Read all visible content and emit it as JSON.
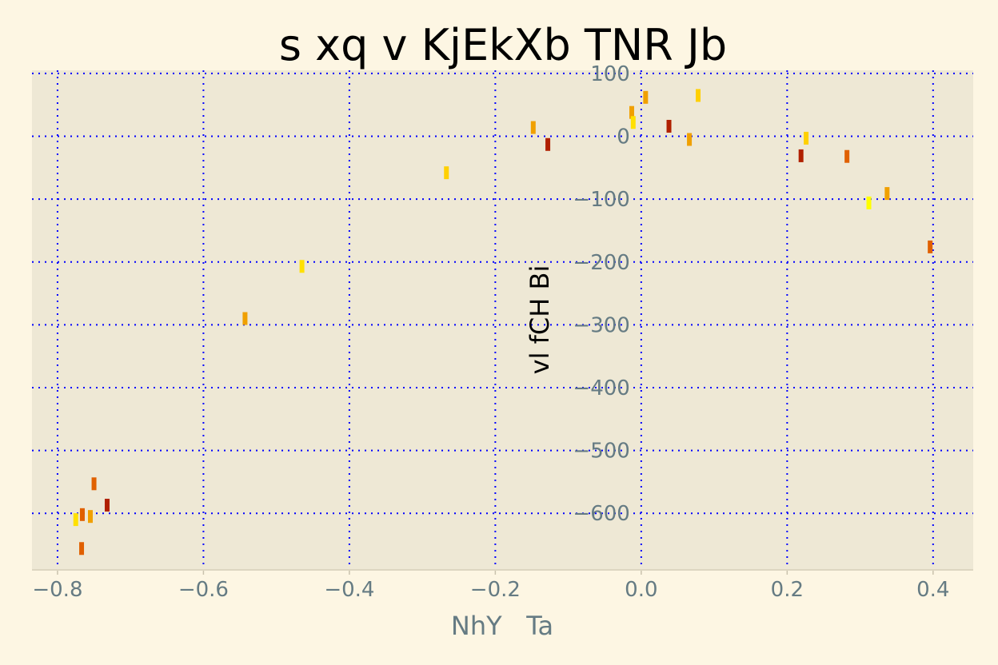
{
  "chart_data": {
    "type": "scatter",
    "title": "s xq v KjEkXb TNR Jb",
    "xlabel": "NhY   Ta",
    "ylabel": "vl fCH Bi",
    "xlim": [
      -0.835,
      0.455
    ],
    "ylim": [
      -690,
      105
    ],
    "xticks": [
      -0.8,
      -0.6,
      -0.4,
      -0.2,
      0.0,
      0.2,
      0.4
    ],
    "xtick_labels": [
      "−0.8",
      "−0.6",
      "−0.4",
      "−0.2",
      "0.0",
      "0.2",
      "0.4"
    ],
    "yticks": [
      100,
      0,
      -100,
      -200,
      -300,
      -400,
      -500,
      -600
    ],
    "ytick_labels": [
      "100",
      "0",
      "−100",
      "−200",
      "−300",
      "−400",
      "−500",
      "−600"
    ],
    "grid": true,
    "marker": "vertical-line",
    "points": [
      {
        "x": -0.775,
        "y": -610,
        "color": "#ffe000"
      },
      {
        "x": -0.766,
        "y": -602,
        "color": "#e06000"
      },
      {
        "x": -0.767,
        "y": -656,
        "color": "#e06000"
      },
      {
        "x": -0.755,
        "y": -605,
        "color": "#f0a000"
      },
      {
        "x": -0.75,
        "y": -553,
        "color": "#e06000"
      },
      {
        "x": -0.732,
        "y": -587,
        "color": "#b02000"
      },
      {
        "x": -0.543,
        "y": -290,
        "color": "#f0a000"
      },
      {
        "x": -0.465,
        "y": -207,
        "color": "#ffe000"
      },
      {
        "x": -0.267,
        "y": -58,
        "color": "#ffd000"
      },
      {
        "x": -0.148,
        "y": 14,
        "color": "#f0a000"
      },
      {
        "x": -0.128,
        "y": -13,
        "color": "#b02000"
      },
      {
        "x": -0.013,
        "y": 38,
        "color": "#f0a000"
      },
      {
        "x": -0.011,
        "y": 22,
        "color": "#ffe000"
      },
      {
        "x": 0.006,
        "y": 62,
        "color": "#f0a000"
      },
      {
        "x": 0.038,
        "y": 16,
        "color": "#b02000"
      },
      {
        "x": 0.066,
        "y": -5,
        "color": "#f0a000"
      },
      {
        "x": 0.078,
        "y": 65,
        "color": "#ffd000"
      },
      {
        "x": 0.219,
        "y": -31,
        "color": "#b02000"
      },
      {
        "x": 0.226,
        "y": -3,
        "color": "#ffd000"
      },
      {
        "x": 0.282,
        "y": -32,
        "color": "#e06000"
      },
      {
        "x": 0.312,
        "y": -106,
        "color": "#ffff00"
      },
      {
        "x": 0.337,
        "y": -91,
        "color": "#f0a000"
      },
      {
        "x": 0.396,
        "y": -176,
        "color": "#e06000"
      }
    ],
    "colors": {
      "figure_background": "#fdf6e3",
      "plot_background": "#eee8d5",
      "grid": "#0000ff",
      "tick_text": "#657b83"
    }
  }
}
